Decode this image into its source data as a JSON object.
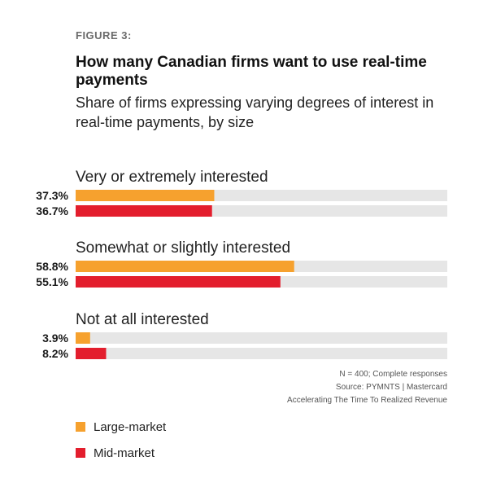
{
  "figure_label": "FIGURE 3:",
  "title": "How many Canadian firms want to use real-time payments",
  "subtitle": "Share of firms expressing varying degrees of interest in real-time payments, by size",
  "notes": [
    "N = 400; Complete responses",
    "Source: PYMNTS  |  Mastercard",
    "Accelerating The Time To Realized Revenue"
  ],
  "legend": [
    {
      "label": "Large-market",
      "color": "#F6A12E"
    },
    {
      "label": "Mid-market",
      "color": "#E31E2D"
    }
  ],
  "chart_data": {
    "type": "bar",
    "orientation": "horizontal",
    "categories": [
      "Very or extremely interested",
      "Somewhat or slightly interested",
      "Not at all interested"
    ],
    "series": [
      {
        "name": "Large-market",
        "color": "#F6A12E",
        "values": [
          37.3,
          58.8,
          3.9
        ],
        "labels": [
          "37.3%",
          "58.8%",
          "3.9%"
        ]
      },
      {
        "name": "Mid-market",
        "color": "#E31E2D",
        "values": [
          36.7,
          55.1,
          8.2
        ],
        "labels": [
          "36.7%",
          "55.1%",
          "8.2%"
        ]
      }
    ],
    "xlim": [
      0,
      100
    ],
    "track_color": "#E6E6E6",
    "grid": false,
    "legend_position": "bottom-left"
  }
}
